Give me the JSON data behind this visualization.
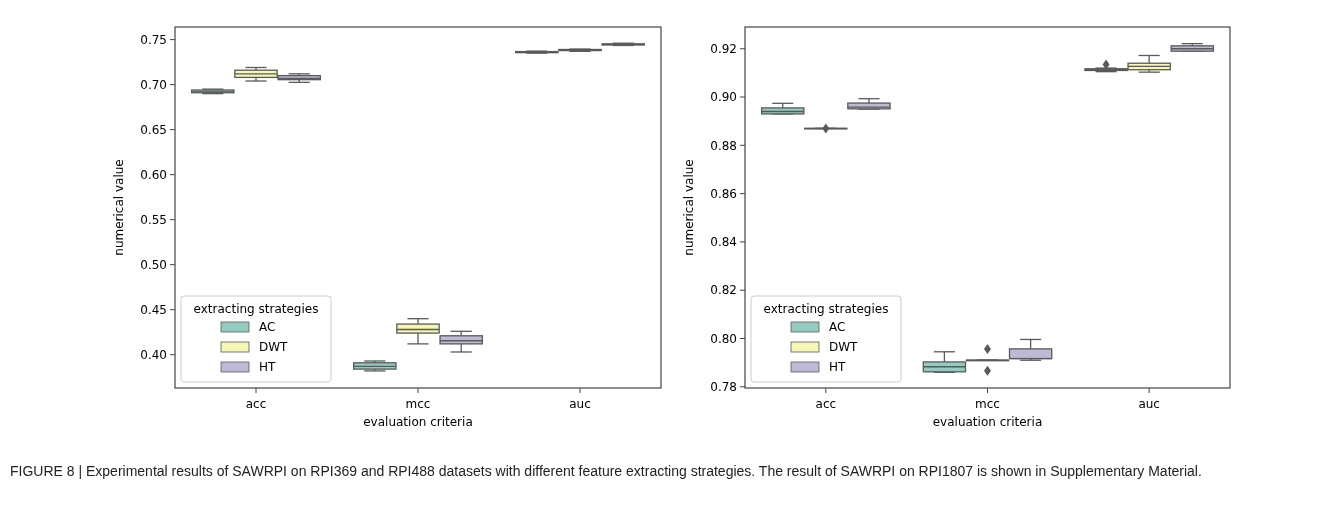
{
  "chart_data": [
    {
      "type": "box",
      "xlabel": "evaluation criteria",
      "ylabel": "numerical value",
      "categories": [
        "acc",
        "mcc",
        "auc"
      ],
      "ylim": [
        0.363,
        0.764
      ],
      "yticks": [
        {
          "value": 0.4,
          "label": "0.40"
        },
        0.45,
        {
          "value": 0.5,
          "label": "0.50"
        },
        0.55,
        {
          "value": 0.6,
          "label": "0.60"
        },
        0.65,
        {
          "value": 0.7,
          "label": "0.70"
        },
        0.75
      ],
      "legend": "bottom left",
      "legend_title": "extracting strategies",
      "annotations": [
        "FIGURE 8 | Experimental results of SAWRPI on RPI369 and RPI488 datasets with different feature extracting strategies. The result of SAWRPI on RPI1807 is shown in Supplementary Material."
      ],
      "series": [
        {
          "name": "AC",
          "color": "#93cbc0",
          "boxes": [
            {
              "low": 0.69,
              "q1": 0.691,
              "median": 0.692,
              "q3": 0.694,
              "high": 0.695
            },
            {
              "low": 0.382,
              "q1": 0.384,
              "median": 0.387,
              "q3": 0.391,
              "high": 0.393
            },
            {
              "low": 0.735,
              "q1": 0.7355,
              "median": 0.736,
              "q3": 0.7367,
              "high": 0.7372
            }
          ]
        },
        {
          "name": "DWT",
          "color": "#f6f6b5",
          "boxes": [
            {
              "low": 0.704,
              "q1": 0.708,
              "median": 0.712,
              "q3": 0.716,
              "high": 0.719
            },
            {
              "low": 0.412,
              "q1": 0.424,
              "median": 0.428,
              "q3": 0.434,
              "high": 0.44
            },
            {
              "low": 0.737,
              "q1": 0.7378,
              "median": 0.7385,
              "q3": 0.739,
              "high": 0.7395
            }
          ]
        },
        {
          "name": "HT",
          "color": "#bdbad6",
          "boxes": [
            {
              "low": 0.7025,
              "q1": 0.7055,
              "median": 0.707,
              "q3": 0.71,
              "high": 0.712
            },
            {
              "low": 0.403,
              "q1": 0.412,
              "median": 0.4155,
              "q3": 0.421,
              "high": 0.426
            },
            {
              "low": 0.7435,
              "q1": 0.744,
              "median": 0.7447,
              "q3": 0.7453,
              "high": 0.746
            }
          ]
        }
      ]
    },
    {
      "type": "box",
      "xlabel": "evaluation criteria",
      "ylabel": "numerical value",
      "categories": [
        "acc",
        "mcc",
        "auc"
      ],
      "ylim": [
        0.7795,
        0.929
      ],
      "yticks": [
        0.78,
        {
          "value": 0.8,
          "label": "0.80"
        },
        0.82,
        0.84,
        0.86,
        0.88,
        {
          "value": 0.9,
          "label": "0.90"
        },
        0.92
      ],
      "legend": "bottom left",
      "legend_title": "extracting strategies",
      "series": [
        {
          "name": "AC",
          "color": "#93cbc0",
          "boxes": [
            {
              "low": 0.893,
              "q1": 0.893,
              "median": 0.894,
              "q3": 0.8955,
              "high": 0.8974
            },
            {
              "low": 0.786,
              "q1": 0.7862,
              "median": 0.7883,
              "q3": 0.7903,
              "high": 0.7945
            },
            {
              "low": 0.9105,
              "q1": 0.911,
              "median": 0.9113,
              "q3": 0.9117,
              "high": 0.912,
              "outliers": [
                0.9135
              ]
            }
          ]
        },
        {
          "name": "DWT",
          "color": "#f6f6b5",
          "boxes": [
            {
              "low": 0.887,
              "q1": 0.887,
              "median": 0.887,
              "q3": 0.887,
              "high": 0.887,
              "outliers": [
                0.887
              ]
            },
            {
              "low": 0.791,
              "q1": 0.791,
              "median": 0.791,
              "q3": 0.791,
              "high": 0.791,
              "outliers": [
                0.7956,
                0.7866
              ]
            },
            {
              "low": 0.9103,
              "q1": 0.9113,
              "median": 0.9127,
              "q3": 0.914,
              "high": 0.9172
            }
          ]
        },
        {
          "name": "HT",
          "color": "#bdbad6",
          "boxes": [
            {
              "low": 0.895,
              "q1": 0.8951,
              "median": 0.8958,
              "q3": 0.8975,
              "high": 0.8993
            },
            {
              "low": 0.791,
              "q1": 0.7917,
              "median": 0.7917,
              "q3": 0.7957,
              "high": 0.7996
            },
            {
              "low": 0.919,
              "q1": 0.919,
              "median": 0.92,
              "q3": 0.9212,
              "high": 0.9221
            }
          ]
        }
      ]
    }
  ]
}
